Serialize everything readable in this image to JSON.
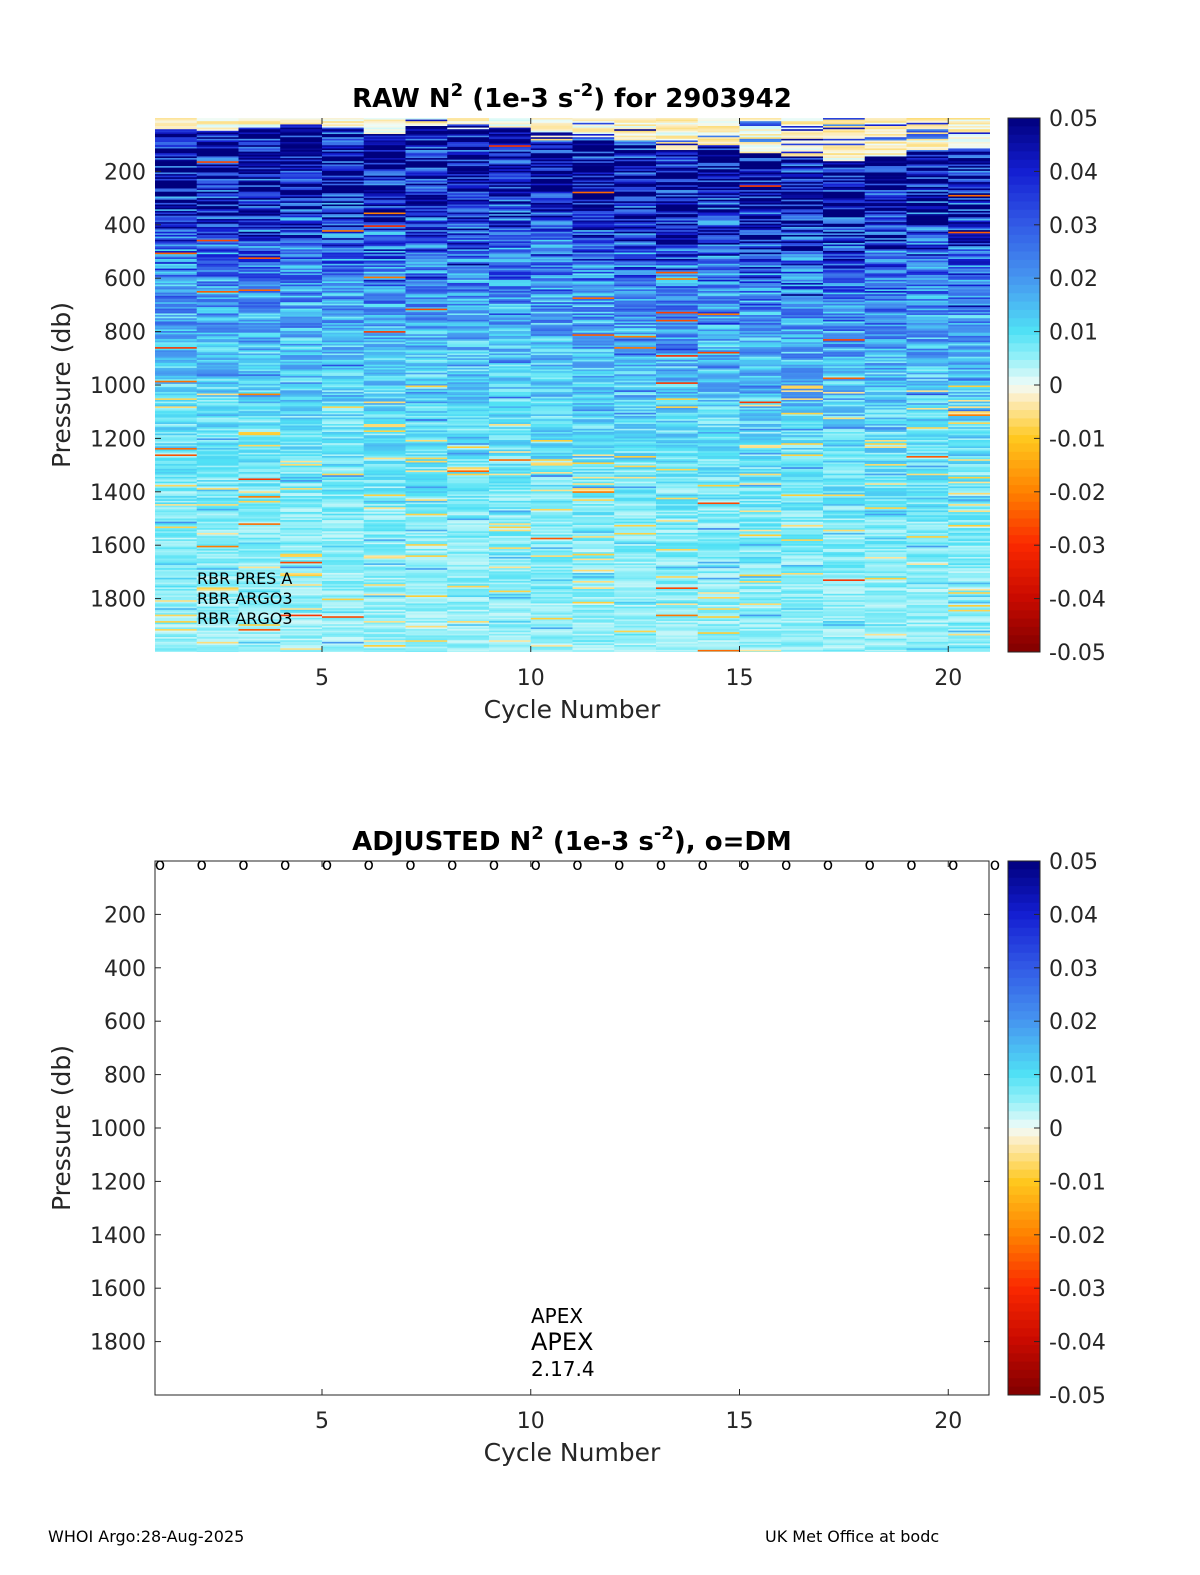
{
  "chart_data": [
    {
      "type": "heatmap",
      "float_id": "2903942",
      "title": {
        "prefix": "RAW N",
        "sup1": "2",
        "mid": " (1e-3 s",
        "sup2": "-2",
        "suffix": ") for 2903942"
      },
      "xlabel": "Cycle Number",
      "ylabel": "Pressure (db)",
      "xlim": [
        1,
        21
      ],
      "ylim": [
        0,
        2000
      ],
      "y_reversed": true,
      "xticks": [
        5,
        10,
        15,
        20
      ],
      "yticks": [
        200,
        400,
        600,
        800,
        1000,
        1200,
        1400,
        1600,
        1800
      ],
      "cycles": [
        1,
        2,
        3,
        4,
        5,
        6,
        7,
        8,
        9,
        10,
        11,
        12,
        13,
        14,
        15,
        16,
        17,
        18,
        19,
        20
      ],
      "surface_top_pressure": [
        40,
        45,
        35,
        30,
        35,
        55,
        30,
        40,
        40,
        80,
        70,
        80,
        120,
        100,
        130,
        150,
        160,
        140,
        120,
        110
      ],
      "colorbar": {
        "clim": [
          -0.05,
          0.05
        ],
        "ticks": [
          "0.05",
          "0.04",
          "0.03",
          "0.02",
          "0.01",
          "0",
          "-0.01",
          "-0.02",
          "-0.03",
          "-0.04",
          "-0.05"
        ],
        "colormap": "blue-cyan-white-yellow-red (diverging)"
      },
      "annotations": [
        "RBR PRES A",
        "RBR ARGO3",
        "RBR ARGO3"
      ]
    },
    {
      "type": "heatmap",
      "title": {
        "prefix": "ADJUSTED N",
        "sup1": "2",
        "mid": " (1e-3 s",
        "sup2": "-2",
        "suffix": "), o=DM"
      },
      "xlabel": "Cycle Number",
      "ylabel": "Pressure (db)",
      "xlim": [
        1,
        21
      ],
      "ylim": [
        0,
        2000
      ],
      "y_reversed": true,
      "xticks": [
        5,
        10,
        15,
        20
      ],
      "yticks": [
        200,
        400,
        600,
        800,
        1000,
        1200,
        1400,
        1600,
        1800
      ],
      "dm_marker": "o",
      "dm_cycles": [
        1,
        2,
        3,
        4,
        5,
        6,
        7,
        8,
        9,
        10,
        11,
        12,
        13,
        14,
        15,
        16,
        17,
        18,
        19,
        20,
        21
      ],
      "values": [],
      "colorbar": {
        "clim": [
          -0.05,
          0.05
        ],
        "ticks": [
          "0.05",
          "0.04",
          "0.03",
          "0.02",
          "0.01",
          "0",
          "-0.01",
          "-0.02",
          "-0.03",
          "-0.04",
          "-0.05"
        ]
      },
      "annotations": [
        "APEX",
        "APEX",
        "2.17.4"
      ]
    }
  ],
  "footer": {
    "left": "WHOI Argo:28-Aug-2025",
    "right": "UK Met Office at bodc"
  }
}
